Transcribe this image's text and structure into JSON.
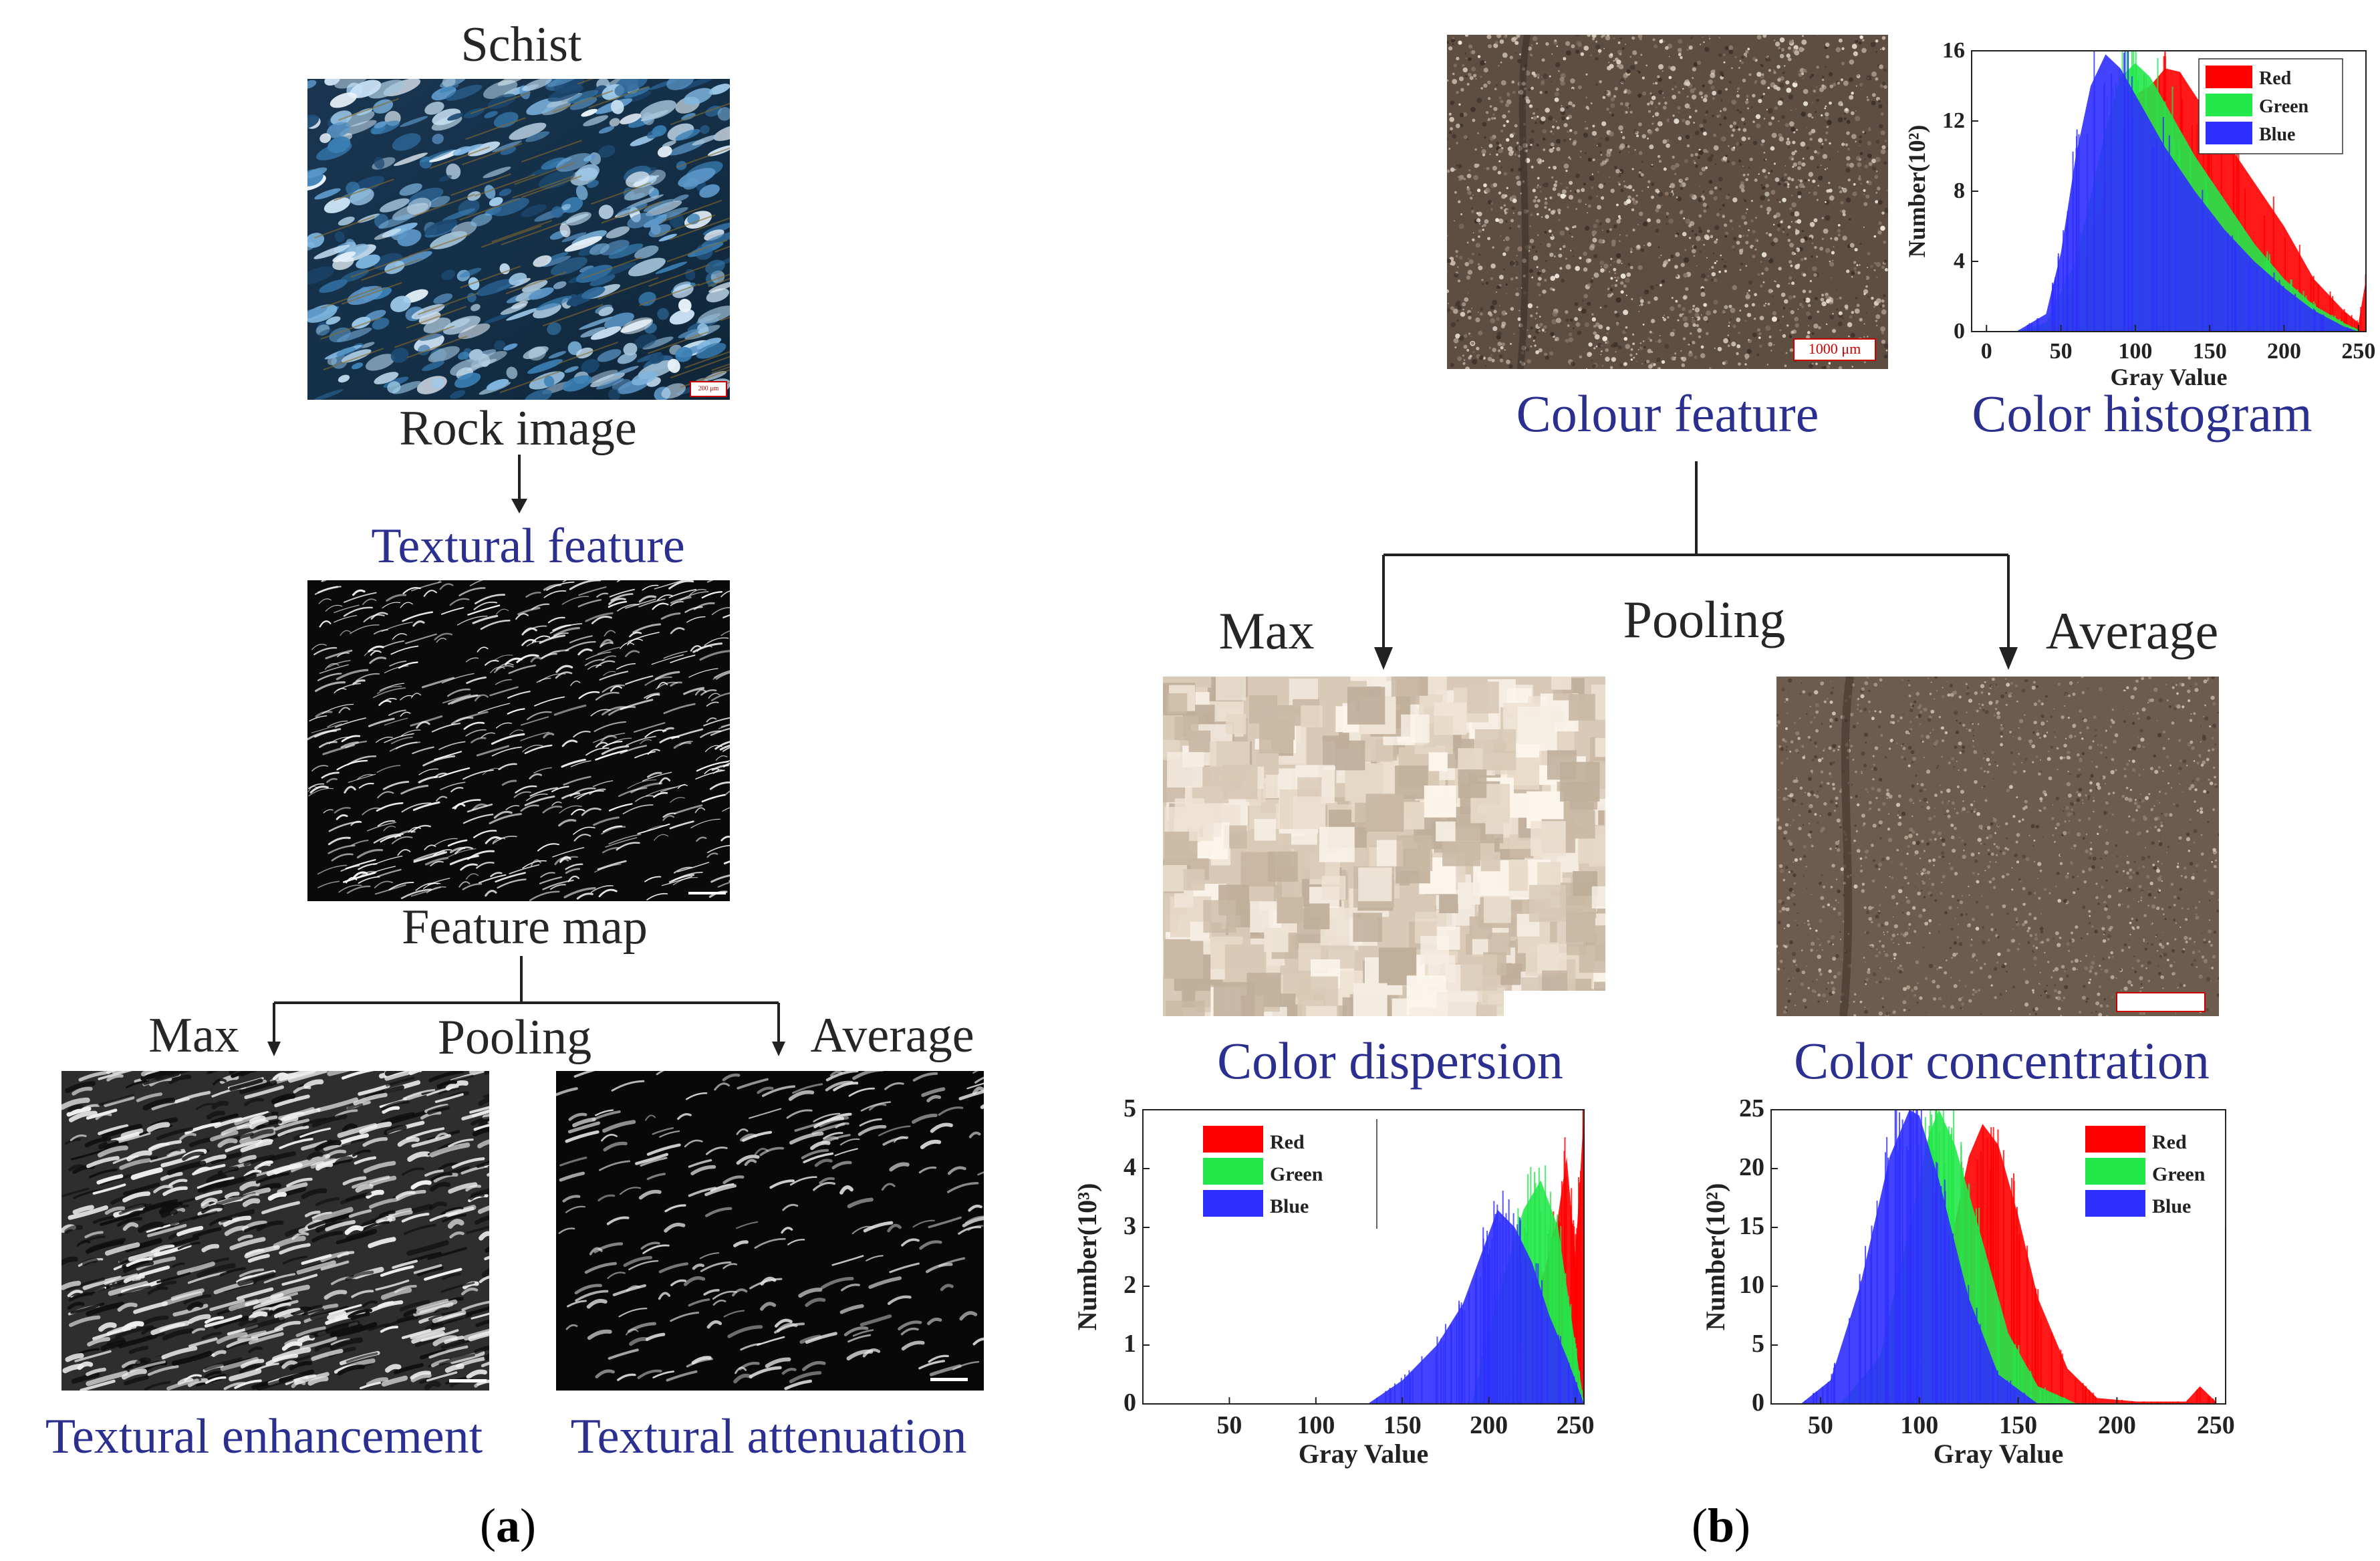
{
  "panel_a": {
    "caption": "(a)",
    "title": "Schist",
    "rock_image_label": "Rock image",
    "textural_feature_label": "Textural feature",
    "feature_map_label": "Feature map",
    "max_label": "Max",
    "pooling_label": "Pooling",
    "average_label": "Average",
    "enhancement_label": "Textural enhancement",
    "attenuation_label": "Textural attenuation",
    "scale_text": "200 μm"
  },
  "panel_b": {
    "caption": "(b)",
    "colour_feature_label": "Colour feature",
    "color_histogram_label": "Color histogram",
    "max_label": "Max",
    "pooling_label": "Pooling",
    "average_label": "Average",
    "dispersion_label": "Color dispersion",
    "concentration_label": "Color concentration",
    "scale_text": "1000 μm"
  },
  "colors": {
    "red": "#ff0000",
    "green": "#22e84a",
    "blue": "#2f2fff",
    "label_blue": "#2b2f8f"
  },
  "chart_data": [
    {
      "id": "color-histogram",
      "type": "area",
      "title": "",
      "xlabel": "Gray Value",
      "ylabel": "Number(10²)",
      "xlim": [
        -10,
        255
      ],
      "ylim": [
        0,
        16
      ],
      "xticks": [
        "0",
        "50",
        "100",
        "150",
        "200",
        "250"
      ],
      "yticks": [
        "0",
        "4",
        "8",
        "12",
        "16"
      ],
      "legend": [
        "Red",
        "Green",
        "Blue"
      ],
      "legend_position": "top-right",
      "series": [
        {
          "name": "Red",
          "x": [
            20,
            40,
            60,
            80,
            100,
            110,
            120,
            130,
            140,
            160,
            180,
            200,
            220,
            240,
            250,
            255
          ],
          "values": [
            0,
            0.3,
            2.5,
            8.5,
            13.5,
            14.0,
            15.0,
            14.8,
            13.5,
            11.0,
            8.5,
            6.0,
            3.0,
            1.2,
            0.5,
            3.0
          ]
        },
        {
          "name": "Green",
          "x": [
            20,
            40,
            60,
            80,
            90,
            100,
            110,
            120,
            140,
            160,
            180,
            200,
            220,
            240,
            250
          ],
          "values": [
            0,
            0.5,
            4.0,
            11.5,
            14.5,
            15.3,
            14.5,
            13.0,
            10.0,
            7.5,
            5.0,
            3.0,
            1.5,
            0.5,
            0.1
          ]
        },
        {
          "name": "Blue",
          "x": [
            20,
            40,
            50,
            60,
            70,
            80,
            90,
            100,
            120,
            140,
            160,
            180,
            200,
            220,
            240,
            250
          ],
          "values": [
            0,
            1.0,
            4.5,
            10.0,
            14.0,
            15.8,
            15.0,
            13.5,
            10.5,
            8.0,
            5.8,
            4.0,
            2.5,
            1.2,
            0.3,
            0
          ]
        }
      ]
    },
    {
      "id": "dispersion-histogram",
      "type": "area",
      "title": "",
      "xlabel": "Gray Value",
      "ylabel": "Number(10³)",
      "xlim": [
        0,
        255
      ],
      "ylim": [
        0,
        5
      ],
      "xticks": [
        "50",
        "100",
        "150",
        "200",
        "250"
      ],
      "yticks": [
        "0",
        "1",
        "2",
        "3",
        "4",
        "5"
      ],
      "legend": [
        "Red",
        "Green",
        "Blue"
      ],
      "legend_position": "top-left",
      "series": [
        {
          "name": "Red",
          "x": [
            210,
            220,
            230,
            240,
            245,
            250,
            255
          ],
          "values": [
            0,
            1.0,
            2.0,
            3.2,
            4.2,
            2.5,
            5.0
          ]
        },
        {
          "name": "Green",
          "x": [
            190,
            200,
            210,
            220,
            230,
            240,
            250,
            255
          ],
          "values": [
            0,
            1.2,
            2.3,
            3.3,
            3.8,
            3.0,
            1.0,
            0
          ]
        },
        {
          "name": "Blue",
          "x": [
            130,
            150,
            170,
            185,
            195,
            205,
            215,
            225,
            235,
            245,
            255
          ],
          "values": [
            0,
            0.4,
            1.0,
            1.7,
            2.5,
            3.3,
            3.0,
            2.4,
            1.5,
            0.8,
            0
          ]
        }
      ]
    },
    {
      "id": "concentration-histogram",
      "type": "area",
      "title": "",
      "xlabel": "Gray Value",
      "ylabel": "Number(10²)",
      "xlim": [
        25,
        255
      ],
      "ylim": [
        0,
        25
      ],
      "xticks": [
        "50",
        "100",
        "150",
        "200",
        "250"
      ],
      "yticks": [
        "0",
        "5",
        "10",
        "15",
        "20",
        "25"
      ],
      "legend": [
        "Red",
        "Green",
        "Blue"
      ],
      "legend_position": "top-right",
      "series": [
        {
          "name": "Red",
          "x": [
            80,
            100,
            115,
            125,
            132,
            140,
            150,
            160,
            175,
            190,
            210,
            235,
            242,
            250
          ],
          "values": [
            0,
            3.0,
            13.0,
            21.0,
            23.8,
            22.0,
            16.0,
            9.0,
            3.0,
            0.5,
            0.2,
            0.2,
            1.5,
            0.2
          ]
        },
        {
          "name": "Green",
          "x": [
            60,
            80,
            95,
            105,
            110,
            118,
            130,
            145,
            160,
            180
          ],
          "values": [
            0,
            4.0,
            15.0,
            23.0,
            25.0,
            22.0,
            15.0,
            6.0,
            1.5,
            0
          ]
        },
        {
          "name": "Blue",
          "x": [
            40,
            55,
            70,
            85,
            95,
            100,
            110,
            125,
            140,
            160
          ],
          "values": [
            0,
            2.0,
            10.0,
            21.0,
            25.0,
            24.5,
            19.0,
            9.0,
            2.5,
            0
          ]
        }
      ]
    }
  ]
}
